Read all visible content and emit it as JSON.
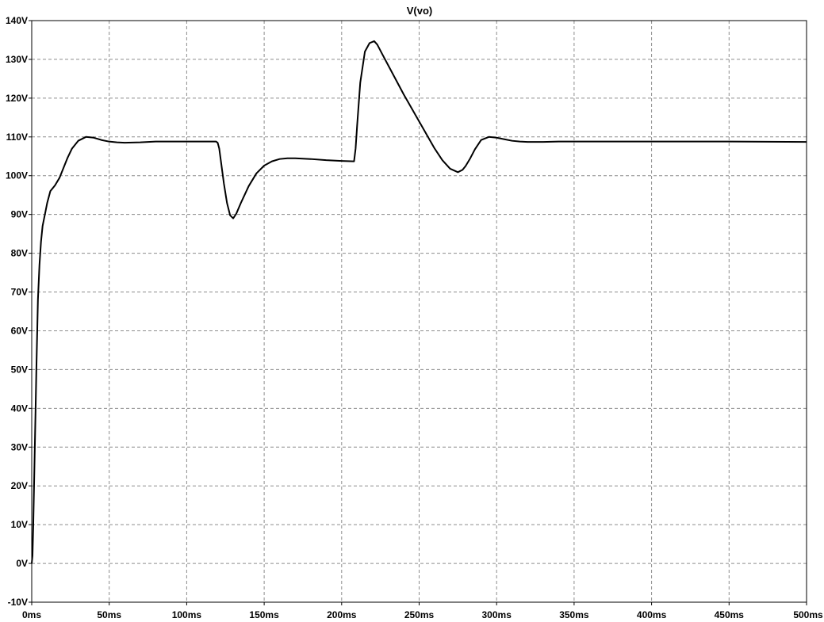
{
  "chart_data": {
    "type": "line",
    "title": "V(vo)",
    "xlabel": "",
    "ylabel": "",
    "xlim": [
      0,
      500
    ],
    "ylim": [
      -10,
      140
    ],
    "grid": true,
    "x_ticks": [
      0,
      50,
      100,
      150,
      200,
      250,
      300,
      350,
      400,
      450,
      500
    ],
    "x_tick_labels": [
      "0ms",
      "50ms",
      "100ms",
      "150ms",
      "200ms",
      "250ms",
      "300ms",
      "350ms",
      "400ms",
      "450ms",
      "500ms"
    ],
    "y_ticks": [
      -10,
      0,
      10,
      20,
      30,
      40,
      50,
      60,
      70,
      80,
      90,
      100,
      110,
      120,
      130,
      140
    ],
    "y_tick_labels": [
      "-10V",
      "0V",
      "10V",
      "20V",
      "30V",
      "40V",
      "50V",
      "60V",
      "70V",
      "80V",
      "90V",
      "100V",
      "110V",
      "120V",
      "130V",
      "140V"
    ],
    "series": [
      {
        "name": "V(vo)",
        "color": "#000000",
        "x": [
          0,
          0.5,
          1,
          2,
          3,
          4,
          5,
          6,
          7,
          8,
          9,
          10,
          12,
          15,
          18,
          20,
          23,
          26,
          30,
          35,
          40,
          45,
          50,
          55,
          60,
          70,
          80,
          90,
          100,
          110,
          119,
          120,
          121,
          122,
          124,
          126,
          128,
          130,
          132,
          135,
          140,
          145,
          150,
          155,
          160,
          165,
          170,
          175,
          180,
          190,
          200,
          208,
          209,
          210,
          212,
          215,
          218,
          221,
          223,
          226,
          230,
          240,
          250,
          260,
          265,
          270,
          275,
          278,
          280,
          283,
          286,
          290,
          295,
          300,
          305,
          310,
          315,
          320,
          330,
          340,
          350,
          400,
          450,
          500
        ],
        "y": [
          0,
          2,
          10,
          30,
          50,
          68,
          77,
          83,
          87,
          89,
          91,
          93,
          96,
          97.5,
          99.5,
          101.5,
          104.5,
          107,
          109,
          110,
          109.8,
          109.2,
          108.8,
          108.6,
          108.5,
          108.6,
          108.8,
          108.8,
          108.8,
          108.8,
          108.8,
          108.5,
          107,
          104,
          98,
          93,
          89.8,
          89,
          90.2,
          93,
          97.3,
          100.6,
          102.6,
          103.7,
          104.3,
          104.5,
          104.5,
          104.4,
          104.3,
          104,
          103.8,
          103.7,
          107,
          113,
          124,
          132,
          134.2,
          134.7,
          133.8,
          131.5,
          128.5,
          121,
          114,
          107,
          104,
          101.8,
          100.9,
          101.5,
          102.5,
          104.5,
          106.8,
          109.2,
          110,
          109.8,
          109.4,
          109,
          108.8,
          108.7,
          108.7,
          108.8,
          108.8,
          108.8,
          108.8,
          108.7
        ]
      }
    ]
  }
}
